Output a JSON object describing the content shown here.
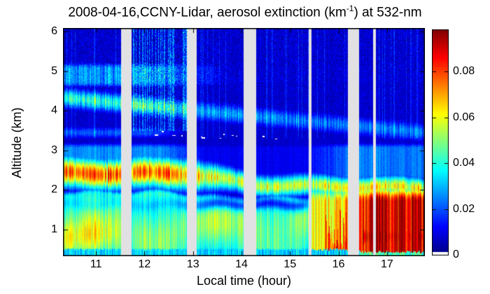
{
  "chart": {
    "title_prefix": "2008-04-16,CCNY-Lidar, aerosol extinction (km",
    "title_sup": "-1",
    "title_suffix": ") at 532-nm",
    "xlabel": "Local time (hour)",
    "ylabel": "Altitude (km)"
  },
  "chart_data": {
    "type": "heatmap",
    "title": "2008-04-16,CCNY-Lidar, aerosol extinction (km^-1) at 532-nm",
    "xlabel": "Local time (hour)",
    "ylabel": "Altitude (km)",
    "x_ticks": [
      11,
      12,
      13,
      14,
      15,
      16,
      17
    ],
    "y_ticks": [
      1,
      2,
      3,
      4,
      5,
      6
    ],
    "x_range": [
      10.32,
      17.78
    ],
    "y_range": [
      0.33,
      6.09
    ],
    "grid": false,
    "colorbar": {
      "ticks": [
        "0",
        "0.02",
        "0.04",
        "0.06",
        "0.08"
      ],
      "tick_values": [
        0,
        0.02,
        0.04,
        0.06,
        0.08
      ],
      "vmin": 0,
      "vmax": 0.0985,
      "colormap": "jet",
      "white_floor": 0.0015
    },
    "gaps_hours": [
      [
        11.52,
        11.74
      ],
      [
        12.88,
        13.08
      ],
      [
        14.04,
        14.3
      ],
      [
        15.39,
        15.44
      ],
      [
        16.19,
        16.42
      ],
      [
        16.71,
        16.77
      ]
    ],
    "gap_color": "#e1e1e4",
    "layers": {
      "base": 0.0075,
      "surface": {
        "top": 0.46,
        "top_late": 0.4,
        "navy": 0.01,
        "blob": 0.027,
        "blob_late": 0.038
      },
      "haze": {
        "base": 0.038,
        "peak_amp": 0.012,
        "peak_z0": 0.82,
        "peak_drift": 0.085,
        "top_early": 1.95,
        "top_mid": 1.8,
        "bottom_boost": 0.012,
        "boost_t_end": 11.6
      },
      "dip": {
        "z": 1.63,
        "w": 0.1,
        "amp_early": 0.006,
        "amp_mid": 0.026
      },
      "band": {
        "c_early": 2.42,
        "c_mid": 2.12,
        "c_late": 2.05,
        "a_early": 0.075,
        "a_mid": 0.056,
        "a_late": 0.062,
        "w_early": 0.27,
        "w_mid": 0.19
      },
      "mid_cyan": {
        "v_early": 0.026,
        "v_mid": 0.011,
        "v_late": 0.024,
        "z_top": 3.16
      },
      "thin_early": {
        "z": 3.45,
        "w": 0.11,
        "amp": 0.02,
        "t_end": 12.8
      },
      "wisp": {
        "z0": 4.32,
        "drift": 0.118,
        "t0": 10.4,
        "w": 0.17,
        "a_early": 0.04,
        "a_mid": 0.028,
        "a_late": 0.024
      },
      "high_band": {
        "z_bot": 4.62,
        "z_top": 5.18,
        "a_early": 0.026,
        "a_late": 0.008
      },
      "late_low": {
        "t0": 15.4,
        "flames": [
          15.73,
          16.18
        ],
        "amp0": 0.058,
        "amp1": 0.07,
        "amp2": 0.093,
        "flame_amp": 0.076,
        "z_full": 1.7,
        "z_zero": 2.35,
        "core_z": 0.82,
        "core_amp": 0.096
      }
    },
    "noise": {
      "col_gain": 0.16,
      "streak_prob": 0.08,
      "streak_add": 0.008,
      "streak_zmin": 3.3,
      "patch": {
        "t": [
          11.76,
          12.88
        ],
        "prob": 0.3,
        "add": 0.016,
        "z_min": 3.5
      },
      "speck_base": 0.0018,
      "speck_high": 0.005
    },
    "white_specks": {
      "t": [
        11.95,
        14.9
      ],
      "z": [
        3.3,
        3.5
      ],
      "count": 14
    },
    "seed": 7
  }
}
